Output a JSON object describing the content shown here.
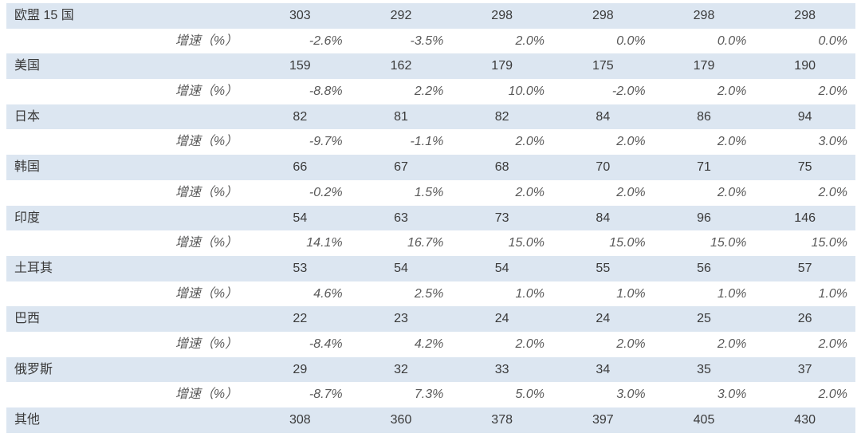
{
  "growth_label": "增速（%）",
  "colors": {
    "band": "#dce6f1",
    "text": "#3a3a3a",
    "growth": "#595959"
  },
  "regions": [
    {
      "name": "欧盟 15 国",
      "values": [
        "303",
        "292",
        "298",
        "298",
        "298",
        "298"
      ],
      "growth": [
        "-2.6%",
        "-3.5%",
        "2.0%",
        "0.0%",
        "0.0%",
        "0.0%"
      ]
    },
    {
      "name": "美国",
      "values": [
        "159",
        "162",
        "179",
        "175",
        "179",
        "190"
      ],
      "growth": [
        "-8.8%",
        "2.2%",
        "10.0%",
        "-2.0%",
        "2.0%",
        "2.0%"
      ]
    },
    {
      "name": "日本",
      "values": [
        "82",
        "81",
        "82",
        "84",
        "86",
        "94"
      ],
      "growth": [
        "-9.7%",
        "-1.1%",
        "2.0%",
        "2.0%",
        "2.0%",
        "3.0%"
      ]
    },
    {
      "name": "韩国",
      "values": [
        "66",
        "67",
        "68",
        "70",
        "71",
        "75"
      ],
      "growth": [
        "-0.2%",
        "1.5%",
        "2.0%",
        "2.0%",
        "2.0%",
        "2.0%"
      ]
    },
    {
      "name": "印度",
      "values": [
        "54",
        "63",
        "73",
        "84",
        "96",
        "146"
      ],
      "growth": [
        "14.1%",
        "16.7%",
        "15.0%",
        "15.0%",
        "15.0%",
        "15.0%"
      ]
    },
    {
      "name": "土耳其",
      "values": [
        "53",
        "54",
        "54",
        "55",
        "56",
        "57"
      ],
      "growth": [
        "4.6%",
        "2.5%",
        "1.0%",
        "1.0%",
        "1.0%",
        "1.0%"
      ]
    },
    {
      "name": "巴西",
      "values": [
        "22",
        "23",
        "24",
        "24",
        "25",
        "26"
      ],
      "growth": [
        "-8.4%",
        "4.2%",
        "2.0%",
        "2.0%",
        "2.0%",
        "2.0%"
      ]
    },
    {
      "name": "俄罗斯",
      "values": [
        "29",
        "32",
        "33",
        "34",
        "35",
        "37"
      ],
      "growth": [
        "-8.7%",
        "7.3%",
        "5.0%",
        "3.0%",
        "3.0%",
        "2.0%"
      ]
    },
    {
      "name": "其他",
      "values": [
        "308",
        "360",
        "378",
        "397",
        "405",
        "430"
      ]
    }
  ]
}
